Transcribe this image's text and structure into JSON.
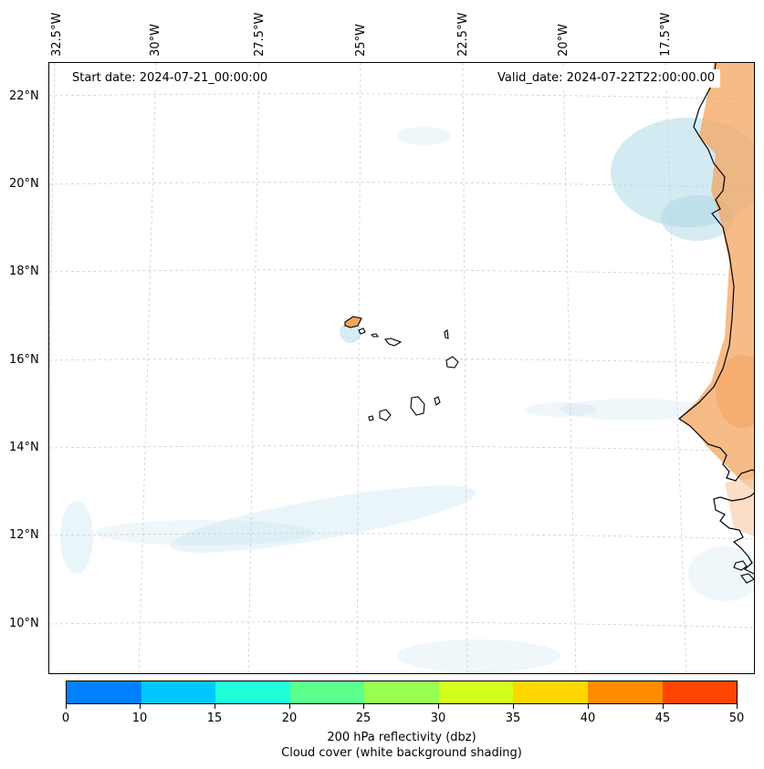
{
  "map": {
    "start_label": "Start date: 2024-07-21_00:00:00",
    "valid_label": "Valid_date: 2024-07-22T22:00:00.00",
    "latitude_labels": [
      "22°N",
      "20°N",
      "18°N",
      "16°N",
      "14°N",
      "12°N",
      "10°N"
    ],
    "longitude_labels": [
      "32.5°W",
      "30°W",
      "27.5°W",
      "25°W",
      "22.5°W",
      "20°W",
      "17.5°W"
    ],
    "colors": {
      "land_warm": "#f4a460",
      "cloud_blue": "#add8e6",
      "coastline": "#000000",
      "grid": "#cccccc"
    }
  },
  "colorbar": {
    "ticks": [
      "0",
      "10",
      "15",
      "20",
      "25",
      "30",
      "35",
      "40",
      "45",
      "50"
    ],
    "colors": [
      "#0080ff",
      "#00c8ff",
      "#1effd9",
      "#5aff8c",
      "#96ff50",
      "#d2ff1e",
      "#ffd700",
      "#ff8c00",
      "#ff4500"
    ],
    "label_line1": "200 hPa reflectivity (dbz)",
    "label_line2": "Cloud cover (white background shading)"
  }
}
